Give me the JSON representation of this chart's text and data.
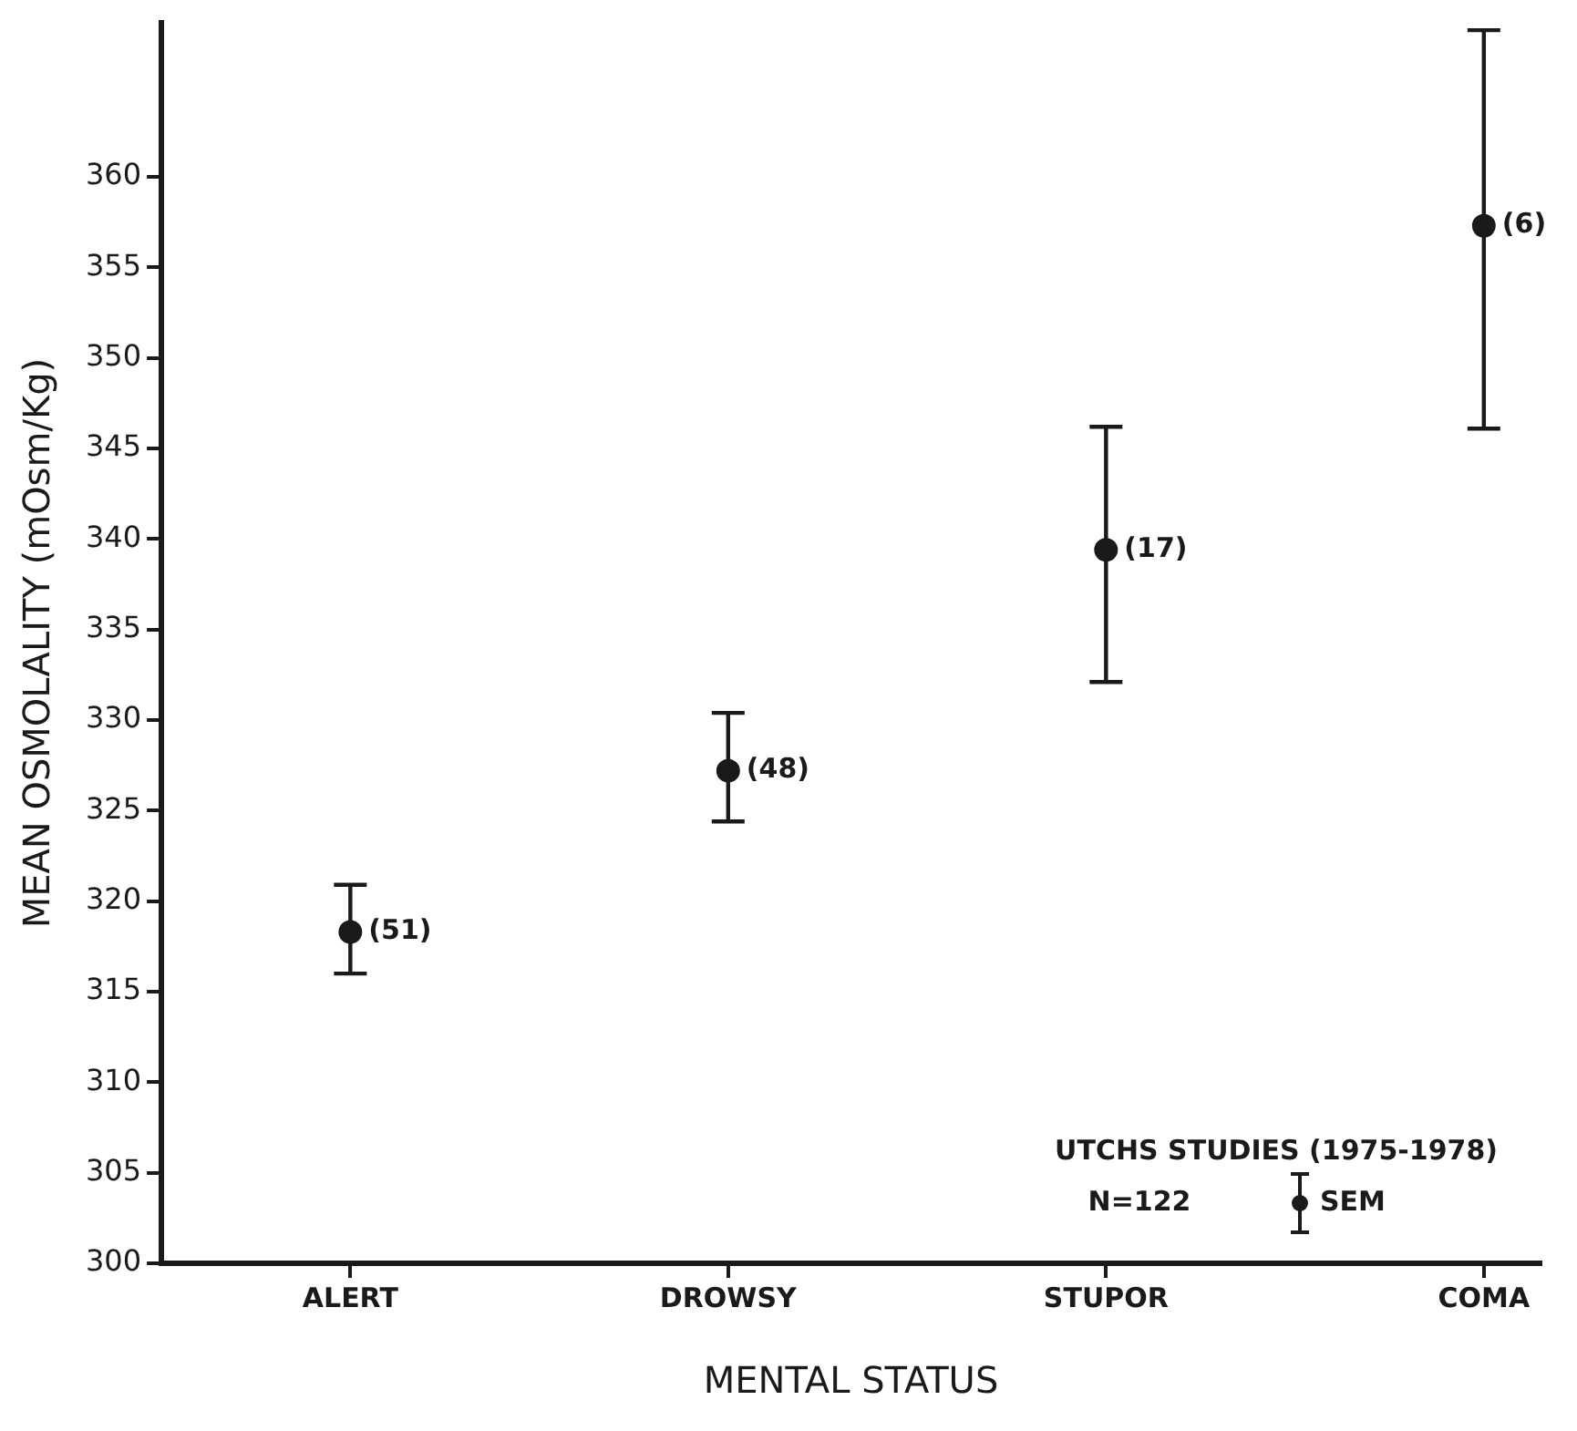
{
  "chart_data": {
    "type": "scatter",
    "xlabel": "MENTAL STATUS",
    "ylabel": "MEAN OSMOLALITY (mOsm/Kg)",
    "categories": [
      "ALERT",
      "DROWSY",
      "STUPOR",
      "COMA"
    ],
    "values": [
      318.3,
      327.2,
      339.4,
      357.3
    ],
    "errors": [
      [
        316.0,
        320.9
      ],
      [
        324.4,
        330.4
      ],
      [
        332.1,
        346.2
      ],
      [
        346.1,
        368.1
      ]
    ],
    "color": "#1a1a1a",
    "marker": "circle",
    "ylim": [
      300,
      368.5
    ],
    "yticks": [
      300,
      305,
      310,
      315,
      320,
      325,
      330,
      335,
      340,
      345,
      350,
      355,
      360
    ],
    "annotations": [
      "UTCHS STUDIES (1975-1978)",
      "N=122",
      "SEM",
      {
        "text": "(51)",
        "x": "ALERT",
        "y": 318.3
      },
      {
        "text": "(48)",
        "x": "DROWSY",
        "y": 327.2
      },
      {
        "text": "(17)",
        "x": "STUPOR",
        "y": 339.4
      },
      {
        "text": "(6)",
        "x": "COMA",
        "y": 357.3
      }
    ]
  }
}
